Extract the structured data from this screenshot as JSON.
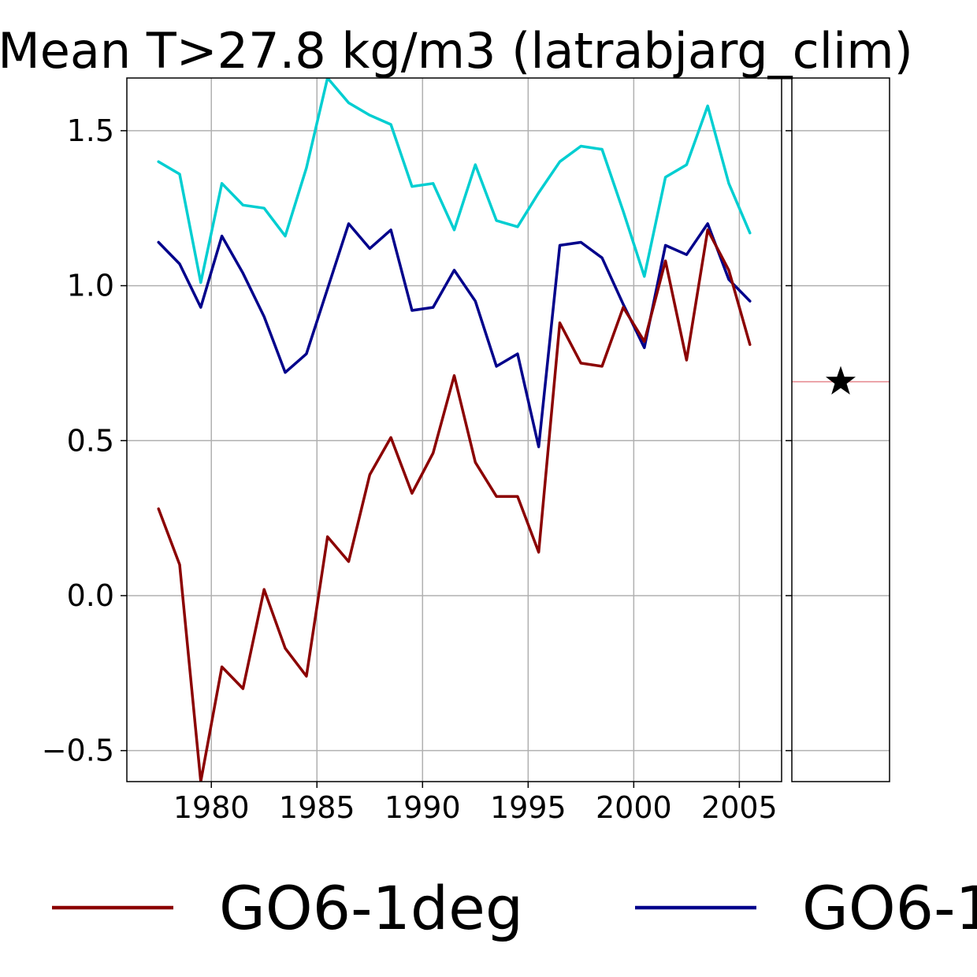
{
  "chart_data": {
    "type": "line",
    "title": "Mean T>27.8 kg/m3 (latrabjarg_clim)",
    "xlabel": "",
    "ylabel": "",
    "xlim": [
      1976,
      2007
    ],
    "ylim": [
      -0.6,
      1.67
    ],
    "xticks": [
      1980,
      1985,
      1990,
      1995,
      2000,
      2005
    ],
    "yticks": [
      -0.5,
      0.0,
      0.5,
      1.0,
      1.5
    ],
    "ytick_labels": [
      "−0.5",
      "0.0",
      "0.5",
      "1.0",
      "1.5"
    ],
    "grid": true,
    "x": [
      1977.5,
      1978.5,
      1979.5,
      1980.5,
      1981.5,
      1982.5,
      1983.5,
      1984.5,
      1985.5,
      1986.5,
      1987.5,
      1988.5,
      1989.5,
      1990.5,
      1991.5,
      1992.5,
      1993.5,
      1994.5,
      1995.5,
      1996.5,
      1997.5,
      1998.5,
      1999.5,
      2000.5,
      2001.5,
      2002.5,
      2003.5,
      2004.5,
      2005.5
    ],
    "series": [
      {
        "name": "GO6-1deg",
        "color": "#8b0000",
        "values": [
          0.28,
          0.1,
          -0.6,
          -0.23,
          -0.3,
          0.02,
          -0.17,
          -0.26,
          0.19,
          0.11,
          0.39,
          0.51,
          0.33,
          0.46,
          0.71,
          0.43,
          0.32,
          0.32,
          0.14,
          0.88,
          0.75,
          0.74,
          0.93,
          0.82,
          1.08,
          0.76,
          1.18,
          1.05,
          0.81
        ]
      },
      {
        "name": "GO6-1",
        "color": "#00008b",
        "values": [
          1.14,
          1.07,
          0.93,
          1.16,
          1.04,
          0.9,
          0.72,
          0.78,
          0.99,
          1.2,
          1.12,
          1.18,
          0.92,
          0.93,
          1.05,
          0.95,
          0.74,
          0.78,
          0.48,
          1.13,
          1.14,
          1.09,
          0.94,
          0.8,
          1.13,
          1.1,
          1.2,
          1.02,
          0.95
        ]
      },
      {
        "name": "",
        "color": "#00ced1",
        "values": [
          1.4,
          1.36,
          1.01,
          1.33,
          1.26,
          1.25,
          1.16,
          1.38,
          1.67,
          1.59,
          1.55,
          1.52,
          1.32,
          1.33,
          1.18,
          1.39,
          1.21,
          1.19,
          1.3,
          1.4,
          1.45,
          1.44,
          1.24,
          1.03,
          1.35,
          1.39,
          1.58,
          1.33,
          1.17
        ]
      }
    ],
    "side_panel": {
      "reference_value": 0.69,
      "reference_line_color": "#e6868c",
      "marker": "star-icon",
      "marker_value": 0.69,
      "marker_color": "#000000"
    },
    "legend": {
      "placement": "bottom",
      "entries": [
        {
          "label": "GO6-1deg",
          "color": "#8b0000"
        },
        {
          "label": "GO6-1",
          "color": "#00008b"
        }
      ]
    }
  }
}
